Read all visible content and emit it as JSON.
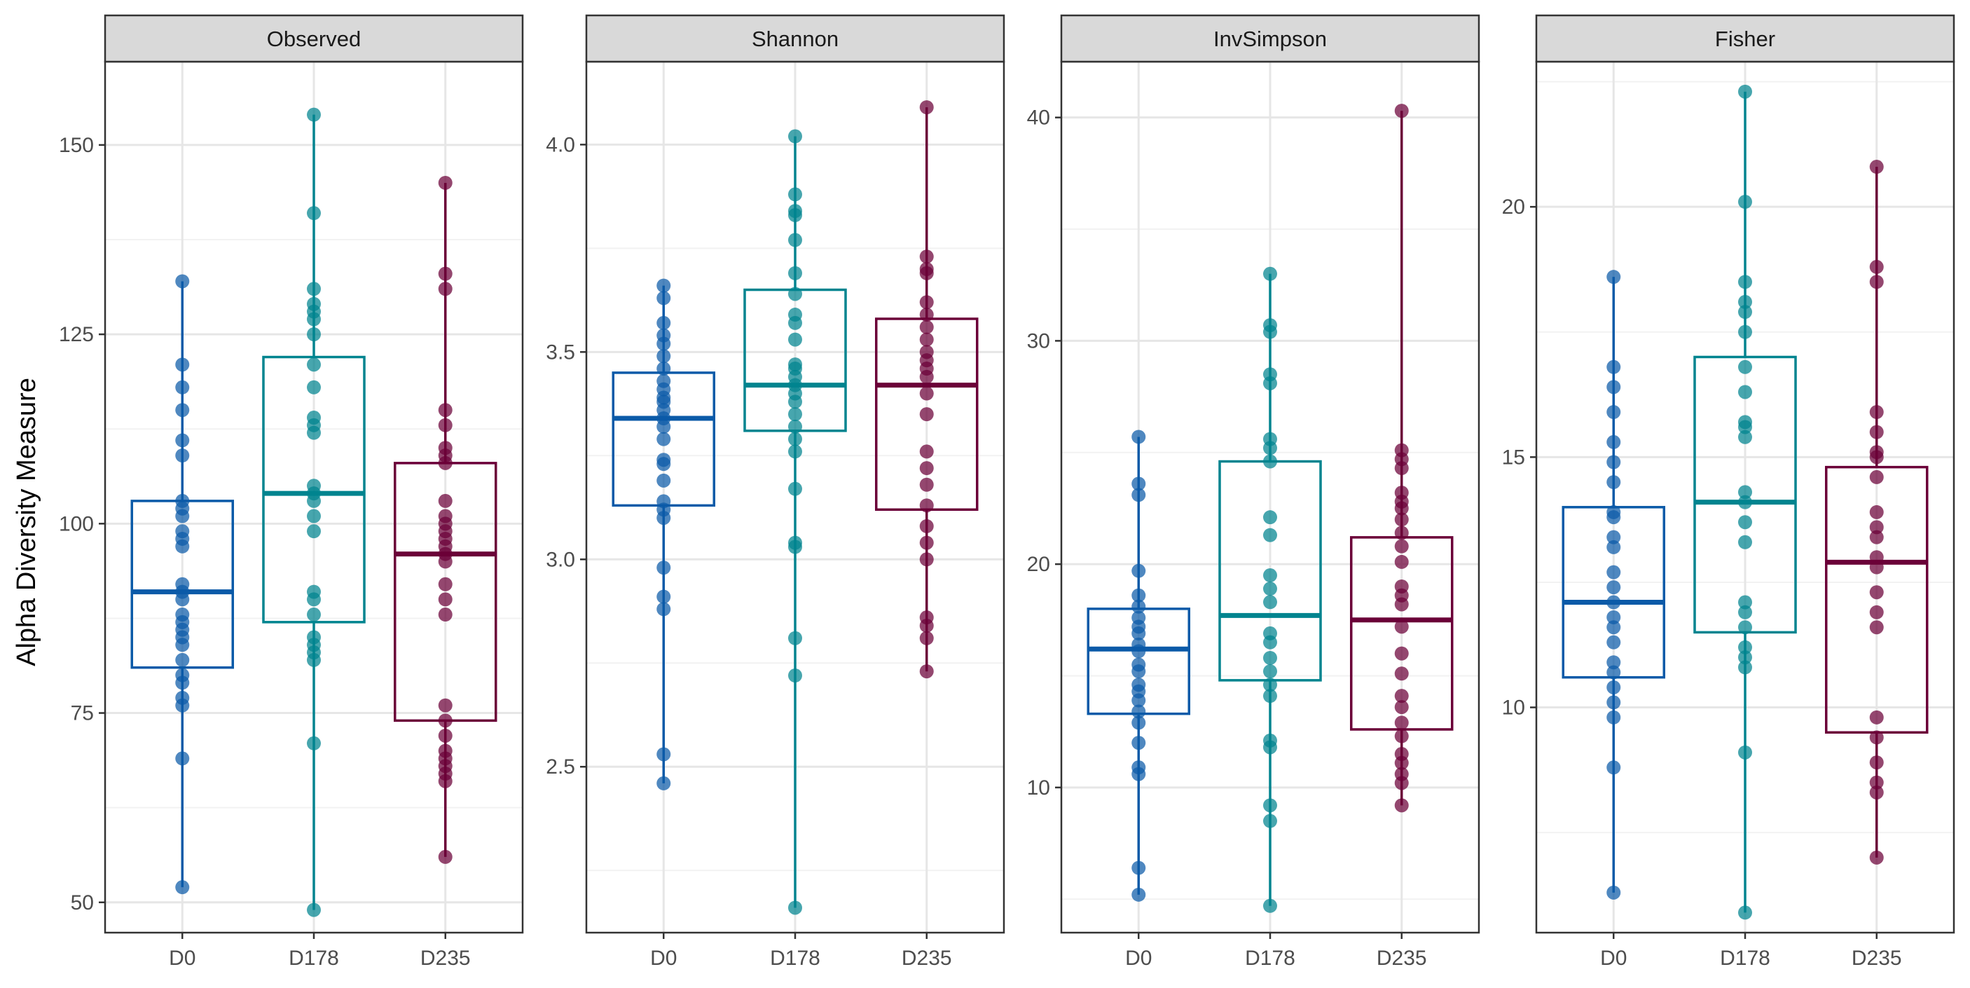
{
  "chart_data": {
    "type": "box",
    "ylabel": "Alpha Diversity Measure",
    "categories": [
      "D0",
      "D178",
      "D235"
    ],
    "colors": {
      "D0": "#0b5aa8",
      "D178": "#00848f",
      "D235": "#6b0038"
    },
    "panels": [
      {
        "title": "Observed",
        "ylim": [
          46,
          161
        ],
        "yticks": [
          50,
          75,
          100,
          125,
          150
        ],
        "ytick_labels": [
          "50",
          "75",
          "100",
          "125",
          "150"
        ],
        "minor_ticks": [
          62.5,
          87.5,
          112.5,
          137.5
        ],
        "boxes": [
          {
            "group": "D0",
            "q1": 81,
            "median": 91,
            "q3": 103,
            "whisker_low": 52,
            "whisker_high": 132,
            "points": [
              52,
              69,
              76,
              77,
              79,
              80,
              82,
              84,
              85,
              86,
              87,
              88,
              90,
              91,
              92,
              97,
              98,
              99,
              101,
              102,
              103,
              109,
              111,
              115,
              118,
              121,
              132
            ]
          },
          {
            "group": "D178",
            "q1": 87,
            "median": 104,
            "q3": 122,
            "whisker_low": 49,
            "whisker_high": 154,
            "points": [
              49,
              71,
              82,
              83,
              84,
              85,
              88,
              90,
              91,
              99,
              101,
              103,
              104,
              105,
              112,
              113,
              114,
              118,
              121,
              125,
              127,
              128,
              129,
              131,
              141,
              154
            ]
          },
          {
            "group": "D235",
            "q1": 74,
            "median": 96,
            "q3": 108,
            "whisker_low": 56,
            "whisker_high": 145,
            "points": [
              56,
              66,
              67,
              68,
              69,
              70,
              72,
              74,
              76,
              88,
              90,
              92,
              95,
              96,
              97,
              98,
              99,
              100,
              101,
              103,
              108,
              109,
              110,
              113,
              115,
              131,
              133,
              145
            ]
          }
        ]
      },
      {
        "title": "Shannon",
        "ylim": [
          2.1,
          4.2
        ],
        "yticks": [
          2.5,
          3.0,
          3.5,
          4.0
        ],
        "ytick_labels": [
          "2.5",
          "3.0",
          "3.5",
          "4.0"
        ],
        "minor_ticks": [
          2.25,
          2.75,
          3.25,
          3.75
        ],
        "boxes": [
          {
            "group": "D0",
            "q1": 3.13,
            "median": 3.34,
            "q3": 3.45,
            "whisker_low": 2.46,
            "whisker_high": 3.66,
            "points": [
              2.46,
              2.53,
              2.88,
              2.91,
              2.98,
              3.1,
              3.12,
              3.14,
              3.19,
              3.23,
              3.24,
              3.29,
              3.32,
              3.34,
              3.36,
              3.38,
              3.39,
              3.41,
              3.43,
              3.46,
              3.49,
              3.52,
              3.54,
              3.57,
              3.63,
              3.66
            ]
          },
          {
            "group": "D178",
            "q1": 3.31,
            "median": 3.42,
            "q3": 3.65,
            "whisker_low": 2.16,
            "whisker_high": 4.02,
            "points": [
              2.16,
              2.72,
              2.81,
              3.03,
              3.04,
              3.17,
              3.26,
              3.29,
              3.32,
              3.35,
              3.38,
              3.4,
              3.42,
              3.44,
              3.46,
              3.47,
              3.53,
              3.57,
              3.59,
              3.64,
              3.69,
              3.77,
              3.83,
              3.84,
              3.88,
              4.02
            ]
          },
          {
            "group": "D235",
            "q1": 3.12,
            "median": 3.42,
            "q3": 3.58,
            "whisker_low": 2.73,
            "whisker_high": 4.09,
            "points": [
              2.73,
              2.81,
              2.84,
              2.86,
              3.0,
              3.04,
              3.08,
              3.13,
              3.18,
              3.22,
              3.26,
              3.35,
              3.4,
              3.44,
              3.46,
              3.48,
              3.5,
              3.53,
              3.56,
              3.59,
              3.62,
              3.69,
              3.7,
              3.73,
              4.09
            ]
          }
        ]
      },
      {
        "title": "InvSimpson",
        "ylim": [
          3.5,
          42.5
        ],
        "yticks": [
          10,
          20,
          30,
          40
        ],
        "ytick_labels": [
          "10",
          "20",
          "30",
          "40"
        ],
        "minor_ticks": [
          5,
          15,
          25,
          35
        ],
        "boxes": [
          {
            "group": "D0",
            "q1": 13.3,
            "median": 16.2,
            "q3": 18.0,
            "whisker_low": 5.2,
            "whisker_high": 25.7,
            "points": [
              5.2,
              6.4,
              10.6,
              10.9,
              12.0,
              12.9,
              13.4,
              13.9,
              14.3,
              14.6,
              15.2,
              15.5,
              16.1,
              16.4,
              16.9,
              17.2,
              17.6,
              18.1,
              18.6,
              19.7,
              23.1,
              23.6,
              25.7
            ]
          },
          {
            "group": "D178",
            "q1": 14.8,
            "median": 17.7,
            "q3": 24.6,
            "whisker_low": 4.7,
            "whisker_high": 33.0,
            "points": [
              4.7,
              8.5,
              9.2,
              11.8,
              12.1,
              14.1,
              14.6,
              15.2,
              15.8,
              16.5,
              16.9,
              18.3,
              18.9,
              19.5,
              21.3,
              22.1,
              24.6,
              25.2,
              25.6,
              28.1,
              28.5,
              30.4,
              30.7,
              33.0
            ]
          },
          {
            "group": "D235",
            "q1": 12.6,
            "median": 17.5,
            "q3": 21.2,
            "whisker_low": 9.2,
            "whisker_high": 40.3,
            "points": [
              9.2,
              10.2,
              10.6,
              11.1,
              11.5,
              12.3,
              12.9,
              13.6,
              14.1,
              15.1,
              16.0,
              17.2,
              18.2,
              18.6,
              19.0,
              20.1,
              20.8,
              21.4,
              22.0,
              22.5,
              22.8,
              23.2,
              24.3,
              24.7,
              25.1,
              40.3
            ]
          }
        ]
      },
      {
        "title": "Fisher",
        "ylim": [
          5.5,
          22.9
        ],
        "yticks": [
          10,
          15,
          20
        ],
        "ytick_labels": [
          "10",
          "15",
          "20"
        ],
        "minor_ticks": [
          7.5,
          12.5,
          17.5,
          22.5
        ],
        "boxes": [
          {
            "group": "D0",
            "q1": 10.6,
            "median": 12.1,
            "q3": 14.0,
            "whisker_low": 6.3,
            "whisker_high": 18.6,
            "points": [
              6.3,
              8.8,
              9.8,
              10.1,
              10.4,
              10.7,
              10.9,
              11.3,
              11.6,
              11.8,
              12.1,
              12.4,
              12.7,
              13.2,
              13.4,
              13.8,
              13.9,
              14.5,
              14.9,
              15.3,
              15.9,
              16.4,
              16.8,
              18.6
            ]
          },
          {
            "group": "D178",
            "q1": 11.5,
            "median": 14.1,
            "q3": 17.0,
            "whisker_low": 5.9,
            "whisker_high": 22.3,
            "points": [
              5.9,
              9.1,
              10.8,
              11.0,
              11.2,
              11.6,
              11.9,
              12.1,
              13.3,
              13.7,
              14.1,
              14.3,
              15.4,
              15.6,
              15.7,
              16.3,
              16.8,
              17.5,
              17.9,
              18.1,
              18.5,
              20.1,
              22.3
            ]
          },
          {
            "group": "D235",
            "q1": 9.5,
            "median": 12.9,
            "q3": 14.8,
            "whisker_low": 7.0,
            "whisker_high": 20.8,
            "points": [
              7.0,
              8.3,
              8.5,
              8.9,
              9.4,
              9.8,
              11.6,
              11.9,
              12.3,
              12.8,
              13.0,
              13.4,
              13.6,
              13.9,
              14.6,
              15.0,
              15.1,
              15.5,
              15.9,
              18.5,
              18.8,
              20.8
            ]
          }
        ]
      }
    ]
  }
}
